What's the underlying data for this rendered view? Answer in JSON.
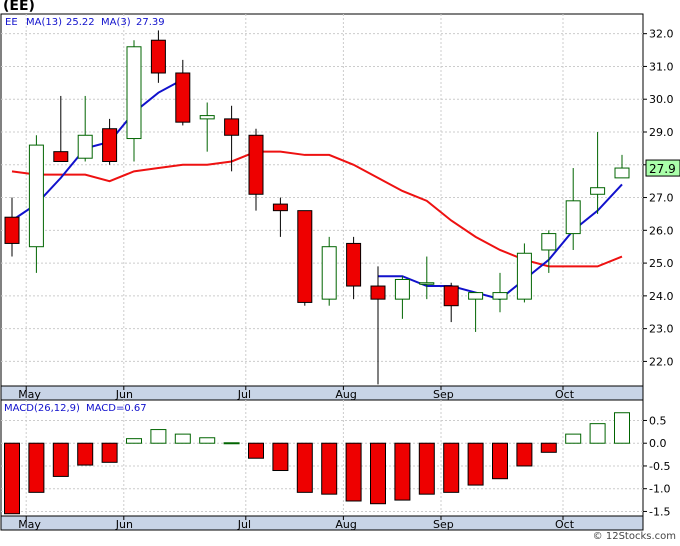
{
  "title": "(EE)",
  "footer": "© 12Stocks.com",
  "colors": {
    "up": "#ffffff",
    "up_stroke": "#006400",
    "down": "#ee0000",
    "down_stroke": "#000000",
    "ma13": "#ee1111",
    "ma3": "#1111cc",
    "panel_bg": "#ffffff",
    "axis_bar": "#c8d4e6",
    "grid": "#cccccc",
    "label_text": "#1111cc",
    "last_price_bg": "#aaffaa"
  },
  "chart_data": [
    {
      "type": "candlestick",
      "legend": {
        "symbol": "EE",
        "ma13_label": "MA(13)",
        "ma13_value": "25.22",
        "ma3_label": "MA(3)",
        "ma3_value": "27.39"
      },
      "last_price_label": "27.9",
      "ylim": [
        21.25,
        32.6
      ],
      "y_ticks": [
        22.0,
        23.0,
        24.0,
        25.0,
        26.0,
        27.0,
        28.0,
        29.0,
        30.0,
        31.0,
        32.0
      ],
      "y_tick_labels": [
        "22.0",
        "23.0",
        "24.0",
        "25.0",
        "26.0",
        "27.0",
        "28.0",
        "29.0",
        "30.0",
        "31.0",
        "32.0"
      ],
      "month_labels": [
        {
          "label": "May",
          "index": 1
        },
        {
          "label": "Jun",
          "index": 5
        },
        {
          "label": "Jul",
          "index": 10
        },
        {
          "label": "Aug",
          "index": 14
        },
        {
          "label": "Sep",
          "index": 18
        },
        {
          "label": "Oct",
          "index": 23
        }
      ],
      "candles": [
        {
          "o": 26.4,
          "h": 27.0,
          "l": 25.2,
          "c": 25.6
        },
        {
          "o": 25.5,
          "h": 28.9,
          "l": 24.7,
          "c": 28.6
        },
        {
          "o": 28.4,
          "h": 30.1,
          "l": 28.1,
          "c": 28.1
        },
        {
          "o": 28.2,
          "h": 30.1,
          "l": 28.1,
          "c": 28.9
        },
        {
          "o": 29.1,
          "h": 29.4,
          "l": 28.0,
          "c": 28.1
        },
        {
          "o": 28.8,
          "h": 31.8,
          "l": 28.1,
          "c": 31.6
        },
        {
          "o": 31.8,
          "h": 32.1,
          "l": 30.5,
          "c": 30.8
        },
        {
          "o": 30.8,
          "h": 31.2,
          "l": 29.2,
          "c": 29.3
        },
        {
          "o": 29.4,
          "h": 29.9,
          "l": 28.4,
          "c": 29.5
        },
        {
          "o": 29.4,
          "h": 29.8,
          "l": 27.8,
          "c": 28.9
        },
        {
          "o": 28.9,
          "h": 29.1,
          "l": 26.6,
          "c": 27.1
        },
        {
          "o": 26.8,
          "h": 27.0,
          "l": 25.8,
          "c": 26.6
        },
        {
          "o": 26.6,
          "h": 26.6,
          "l": 23.7,
          "c": 23.8
        },
        {
          "o": 23.9,
          "h": 25.8,
          "l": 23.7,
          "c": 25.5
        },
        {
          "o": 25.6,
          "h": 25.8,
          "l": 23.9,
          "c": 24.3
        },
        {
          "o": 24.3,
          "h": 24.9,
          "l": 21.3,
          "c": 23.9
        },
        {
          "o": 23.9,
          "h": 24.6,
          "l": 23.3,
          "c": 24.5
        },
        {
          "o": 24.4,
          "h": 25.2,
          "l": 23.9,
          "c": 24.4
        },
        {
          "o": 24.3,
          "h": 24.4,
          "l": 23.2,
          "c": 23.7
        },
        {
          "o": 23.9,
          "h": 24.1,
          "l": 22.9,
          "c": 24.1
        },
        {
          "o": 23.9,
          "h": 24.7,
          "l": 23.5,
          "c": 24.1
        },
        {
          "o": 23.9,
          "h": 25.6,
          "l": 23.8,
          "c": 25.3
        },
        {
          "o": 25.4,
          "h": 26.0,
          "l": 24.7,
          "c": 25.9
        },
        {
          "o": 25.9,
          "h": 27.9,
          "l": 25.4,
          "c": 26.9
        },
        {
          "o": 27.1,
          "h": 29.0,
          "l": 26.5,
          "c": 27.3
        },
        {
          "o": 27.6,
          "h": 28.3,
          "l": 27.6,
          "c": 27.9
        }
      ],
      "ma13": [
        27.8,
        27.7,
        27.7,
        27.7,
        27.5,
        27.8,
        27.9,
        28.0,
        28.0,
        28.1,
        28.4,
        28.4,
        28.3,
        28.3,
        28.0,
        27.6,
        27.2,
        26.9,
        26.3,
        25.8,
        25.4,
        25.1,
        24.9,
        24.9,
        24.9,
        25.2
      ],
      "ma3": [
        26.3,
        26.8,
        27.6,
        28.5,
        28.7,
        29.6,
        30.2,
        30.6,
        null,
        null,
        null,
        null,
        null,
        null,
        null,
        24.6,
        24.6,
        24.3,
        24.3,
        24.1,
        23.9,
        24.5,
        25.1,
        26.0,
        26.6,
        27.4
      ],
      "ma13_red_from": 7,
      "ma13_red_to": 25
    },
    {
      "type": "bar",
      "legend": {
        "label": "MACD(26,12,9)",
        "value_label": "MACD=0.67"
      },
      "ylim": [
        -1.6,
        0.95
      ],
      "y_ticks": [
        0.5,
        0.0,
        -0.5,
        -1.0,
        -1.5
      ],
      "y_tick_labels": [
        "0.5",
        "0.0",
        "-0.5",
        "-1.0",
        "-1.5"
      ],
      "values": [
        -1.55,
        -1.08,
        -0.73,
        -0.48,
        -0.42,
        0.1,
        0.3,
        0.2,
        0.12,
        0.01,
        -0.33,
        -0.6,
        -1.08,
        -1.12,
        -1.27,
        -1.33,
        -1.25,
        -1.12,
        -1.08,
        -0.92,
        -0.78,
        -0.5,
        -0.2,
        0.2,
        0.43,
        0.67
      ]
    }
  ]
}
